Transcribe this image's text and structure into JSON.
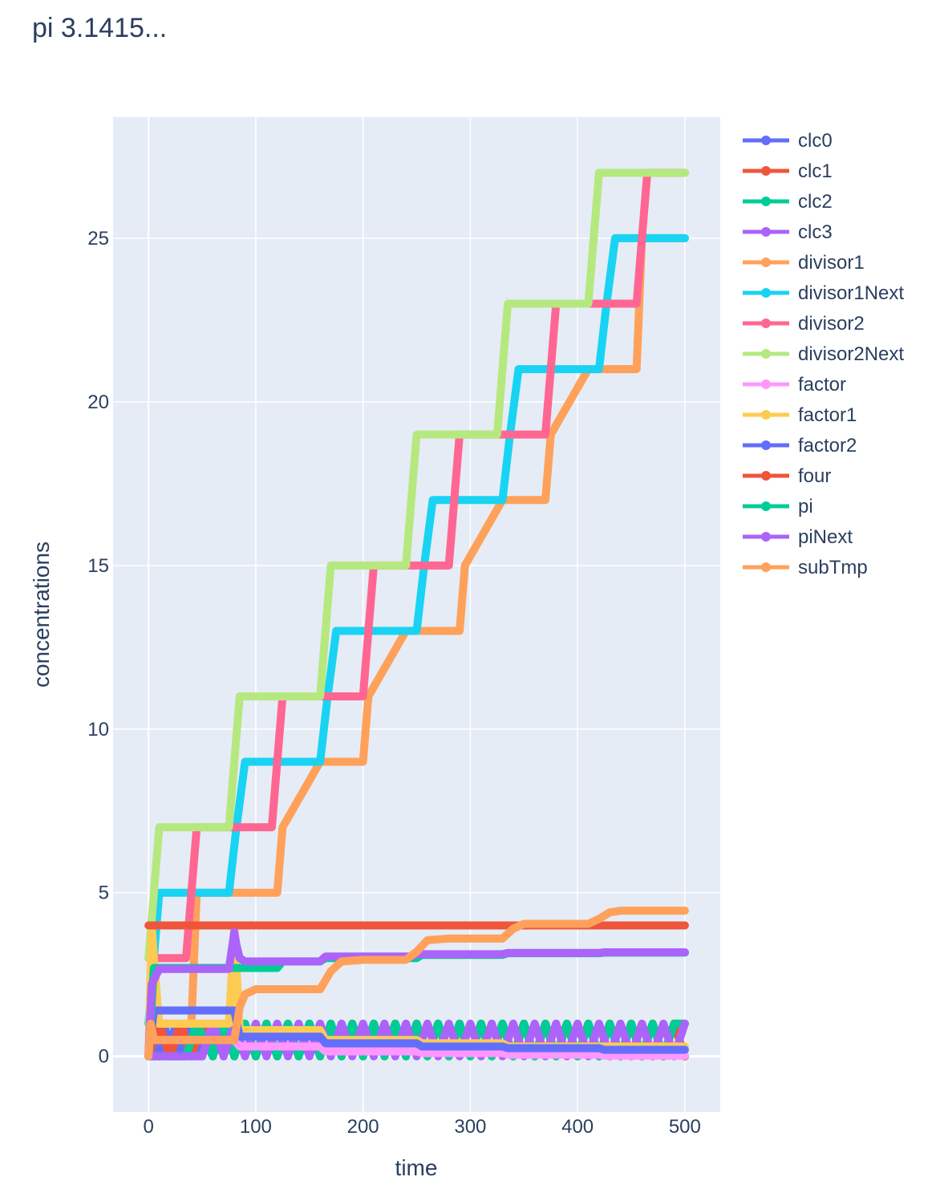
{
  "chart_data": {
    "type": "line",
    "title": "pi 3.1415...",
    "xlabel": "time",
    "ylabel": "concentrations",
    "xlim": [
      -33,
      533
    ],
    "ylim": [
      -1.7,
      28.7
    ],
    "xticks": [
      0,
      100,
      200,
      300,
      400,
      500
    ],
    "yticks": [
      0,
      5,
      10,
      15,
      20,
      25
    ],
    "grid": true,
    "legend_position": "right",
    "colors": {
      "plot_bg": "#e5ecf6",
      "grid": "#ffffff",
      "text": "#2a3f5f"
    },
    "series": [
      {
        "name": "clc0",
        "color": "#636efa",
        "x": [
          0,
          5,
          10,
          15,
          20,
          25,
          30,
          35,
          40,
          45,
          50,
          55,
          60,
          65,
          70,
          75,
          80,
          90,
          100,
          110,
          120,
          130,
          140,
          150,
          160,
          170,
          180,
          190,
          200,
          210,
          220,
          230,
          240,
          250,
          260,
          270,
          280,
          290,
          300,
          310,
          320,
          330,
          340,
          350,
          360,
          370,
          380,
          390,
          400,
          410,
          420,
          430,
          440,
          450,
          460,
          470,
          480,
          490,
          500
        ],
        "y": [
          1,
          1,
          0,
          1,
          0,
          1,
          0,
          1,
          0,
          1,
          0,
          1,
          0,
          1,
          0,
          1,
          0,
          1,
          0,
          1,
          0,
          1,
          0,
          1,
          0,
          1,
          0,
          1,
          0,
          1,
          0,
          1,
          0,
          1,
          0,
          1,
          0,
          1,
          0,
          1,
          0,
          1,
          0,
          1,
          0,
          1,
          0,
          1,
          0,
          1,
          0,
          1,
          0,
          1,
          0,
          1,
          0,
          1,
          0
        ]
      },
      {
        "name": "clc1",
        "color": "#ef553b",
        "x": [
          0,
          10,
          20,
          30,
          40,
          50,
          60,
          70,
          80,
          90,
          100,
          110,
          120,
          130,
          140,
          150,
          160,
          170,
          180,
          190,
          200,
          210,
          220,
          230,
          240,
          250,
          260,
          270,
          280,
          290,
          300,
          310,
          320,
          330,
          340,
          350,
          360,
          370,
          380,
          390,
          400,
          410,
          420,
          430,
          440,
          450,
          460,
          470,
          480,
          490,
          500
        ],
        "y": [
          0,
          1,
          0,
          1,
          0,
          1,
          0,
          1,
          0,
          1,
          0,
          1,
          0,
          1,
          0,
          1,
          0,
          1,
          0,
          1,
          0,
          1,
          0,
          1,
          0,
          1,
          0,
          1,
          0,
          1,
          0,
          1,
          0,
          1,
          0,
          1,
          0,
          1,
          0,
          1,
          0,
          1,
          0,
          1,
          0,
          1,
          0,
          1,
          0,
          1,
          0
        ]
      },
      {
        "name": "clc2",
        "color": "#00cc96",
        "x": [
          0,
          35,
          45,
          60,
          70,
          80,
          90,
          100,
          110,
          120,
          130,
          140,
          150,
          160,
          170,
          180,
          190,
          200,
          210,
          220,
          230,
          240,
          250,
          260,
          270,
          280,
          290,
          300,
          310,
          320,
          330,
          340,
          350,
          360,
          370,
          380,
          390,
          400,
          410,
          420,
          430,
          440,
          450,
          460,
          470,
          480,
          490,
          500
        ],
        "y": [
          0,
          0,
          1,
          0,
          1,
          0,
          1,
          0,
          1,
          0,
          1,
          0,
          1,
          0,
          1,
          0,
          1,
          0,
          1,
          0,
          1,
          0,
          1,
          0,
          1,
          0,
          1,
          0,
          1,
          0,
          1,
          0,
          1,
          0,
          1,
          0,
          1,
          0,
          1,
          0,
          1,
          0,
          1,
          0,
          1,
          0,
          1,
          1
        ]
      },
      {
        "name": "clc3",
        "color": "#ab63fa",
        "x": [
          0,
          50,
          60,
          70,
          80,
          90,
          100,
          110,
          120,
          130,
          140,
          150,
          160,
          170,
          180,
          190,
          200,
          210,
          220,
          230,
          240,
          250,
          260,
          270,
          280,
          290,
          300,
          310,
          320,
          330,
          340,
          350,
          360,
          370,
          380,
          390,
          400,
          410,
          420,
          430,
          440,
          450,
          460,
          470,
          480,
          490,
          500
        ],
        "y": [
          0,
          0,
          1,
          0,
          1,
          0,
          1,
          0,
          1,
          0,
          1,
          0,
          1,
          0,
          1,
          0,
          1,
          0,
          1,
          0,
          1,
          0,
          1,
          0,
          1,
          0,
          1,
          0,
          1,
          0,
          1,
          0,
          1,
          0,
          1,
          0,
          1,
          0,
          1,
          0,
          1,
          0,
          1,
          0,
          1,
          0,
          1
        ]
      },
      {
        "name": "divisor1",
        "color": "#ffa15a",
        "x": [
          0,
          40,
          45,
          80,
          85,
          120,
          125,
          160,
          165,
          200,
          205,
          240,
          245,
          290,
          295,
          330,
          335,
          370,
          375,
          410,
          415,
          455,
          460,
          500
        ],
        "y": [
          1,
          1,
          5,
          5,
          5,
          5,
          7,
          9,
          9,
          9,
          11,
          13,
          13,
          13,
          15,
          17,
          17,
          17,
          19,
          21,
          21,
          21,
          25,
          25
        ]
      },
      {
        "name": "divisor1Next",
        "color": "#19d3f3",
        "x": [
          0,
          5,
          10,
          75,
          82,
          90,
          160,
          167,
          175,
          250,
          257,
          265,
          330,
          337,
          345,
          420,
          427,
          435,
          500
        ],
        "y": [
          1,
          3,
          5,
          5,
          7,
          9,
          9,
          11,
          13,
          13,
          15,
          17,
          17,
          19,
          21,
          21,
          23,
          25,
          25
        ]
      },
      {
        "name": "divisor2",
        "color": "#ff6692",
        "x": [
          0,
          35,
          40,
          45,
          115,
          120,
          125,
          200,
          205,
          210,
          280,
          285,
          290,
          370,
          375,
          380,
          455,
          460,
          465,
          500
        ],
        "y": [
          3,
          3,
          5,
          7,
          7,
          9,
          11,
          11,
          13,
          15,
          15,
          17,
          19,
          19,
          21,
          23,
          23,
          25,
          27,
          27
        ]
      },
      {
        "name": "divisor2Next",
        "color": "#b6e880",
        "x": [
          0,
          5,
          10,
          75,
          80,
          85,
          160,
          165,
          170,
          240,
          245,
          250,
          325,
          330,
          335,
          410,
          415,
          420,
          500
        ],
        "y": [
          3,
          5,
          7,
          7,
          9,
          11,
          11,
          13,
          15,
          15,
          17,
          19,
          19,
          21,
          23,
          23,
          25,
          27,
          27
        ]
      },
      {
        "name": "factor",
        "color": "#ff97ff",
        "x": [
          0,
          2,
          5,
          80,
          85,
          160,
          165,
          250,
          255,
          330,
          335,
          420,
          425,
          500
        ],
        "y": [
          0,
          1,
          0.5,
          0.5,
          0.3,
          0.3,
          0.15,
          0.15,
          0.1,
          0.1,
          0.05,
          0.05,
          0.02,
          0.02
        ]
      },
      {
        "name": "factor1",
        "color": "#fecb52",
        "x": [
          0,
          3,
          5,
          10,
          75,
          80,
          85,
          160,
          165,
          250,
          255,
          330,
          335,
          500
        ],
        "y": [
          0,
          4,
          3,
          1,
          1,
          4,
          0.8,
          0.8,
          0.5,
          0.5,
          0.4,
          0.4,
          0.3,
          0.3
        ]
      },
      {
        "name": "factor2",
        "color": "#636efa",
        "x": [
          0,
          5,
          80,
          85,
          160,
          165,
          250,
          255,
          330,
          335,
          420,
          425,
          500
        ],
        "y": [
          0,
          1.4,
          1.4,
          0.6,
          0.6,
          0.4,
          0.4,
          0.3,
          0.3,
          0.25,
          0.25,
          0.2,
          0.2
        ]
      },
      {
        "name": "four",
        "color": "#ef553b",
        "x": [
          0,
          500
        ],
        "y": [
          4,
          4
        ]
      },
      {
        "name": "pi",
        "color": "#00cc96",
        "x": [
          0,
          5,
          10,
          80,
          85,
          90,
          120,
          125,
          160,
          165,
          250,
          255,
          330,
          335,
          420,
          425,
          500
        ],
        "y": [
          0,
          2.7,
          2.7,
          2.7,
          2.7,
          2.7,
          2.7,
          2.9,
          2.9,
          3.0,
          3.0,
          3.1,
          3.1,
          3.15,
          3.15,
          3.17,
          3.17
        ]
      },
      {
        "name": "piNext",
        "color": "#ab63fa",
        "x": [
          0,
          3,
          10,
          75,
          80,
          82,
          85,
          90,
          160,
          165,
          245,
          250,
          330,
          335,
          420,
          425,
          500
        ],
        "y": [
          0,
          2.2,
          2.67,
          2.67,
          3.8,
          3.4,
          3.0,
          2.9,
          2.9,
          3.05,
          3.05,
          3.12,
          3.12,
          3.16,
          3.16,
          3.18,
          3.18
        ]
      },
      {
        "name": "subTmp",
        "color": "#ffa15a",
        "x": [
          0,
          2,
          5,
          80,
          85,
          90,
          100,
          160,
          170,
          180,
          200,
          240,
          250,
          260,
          280,
          330,
          340,
          350,
          410,
          420,
          430,
          440,
          500
        ],
        "y": [
          0,
          1,
          0.5,
          0.5,
          1.5,
          1.9,
          2.05,
          2.05,
          2.6,
          2.9,
          2.95,
          2.95,
          3.2,
          3.55,
          3.6,
          3.6,
          3.9,
          4.05,
          4.05,
          4.2,
          4.4,
          4.45,
          4.45
        ]
      }
    ]
  }
}
